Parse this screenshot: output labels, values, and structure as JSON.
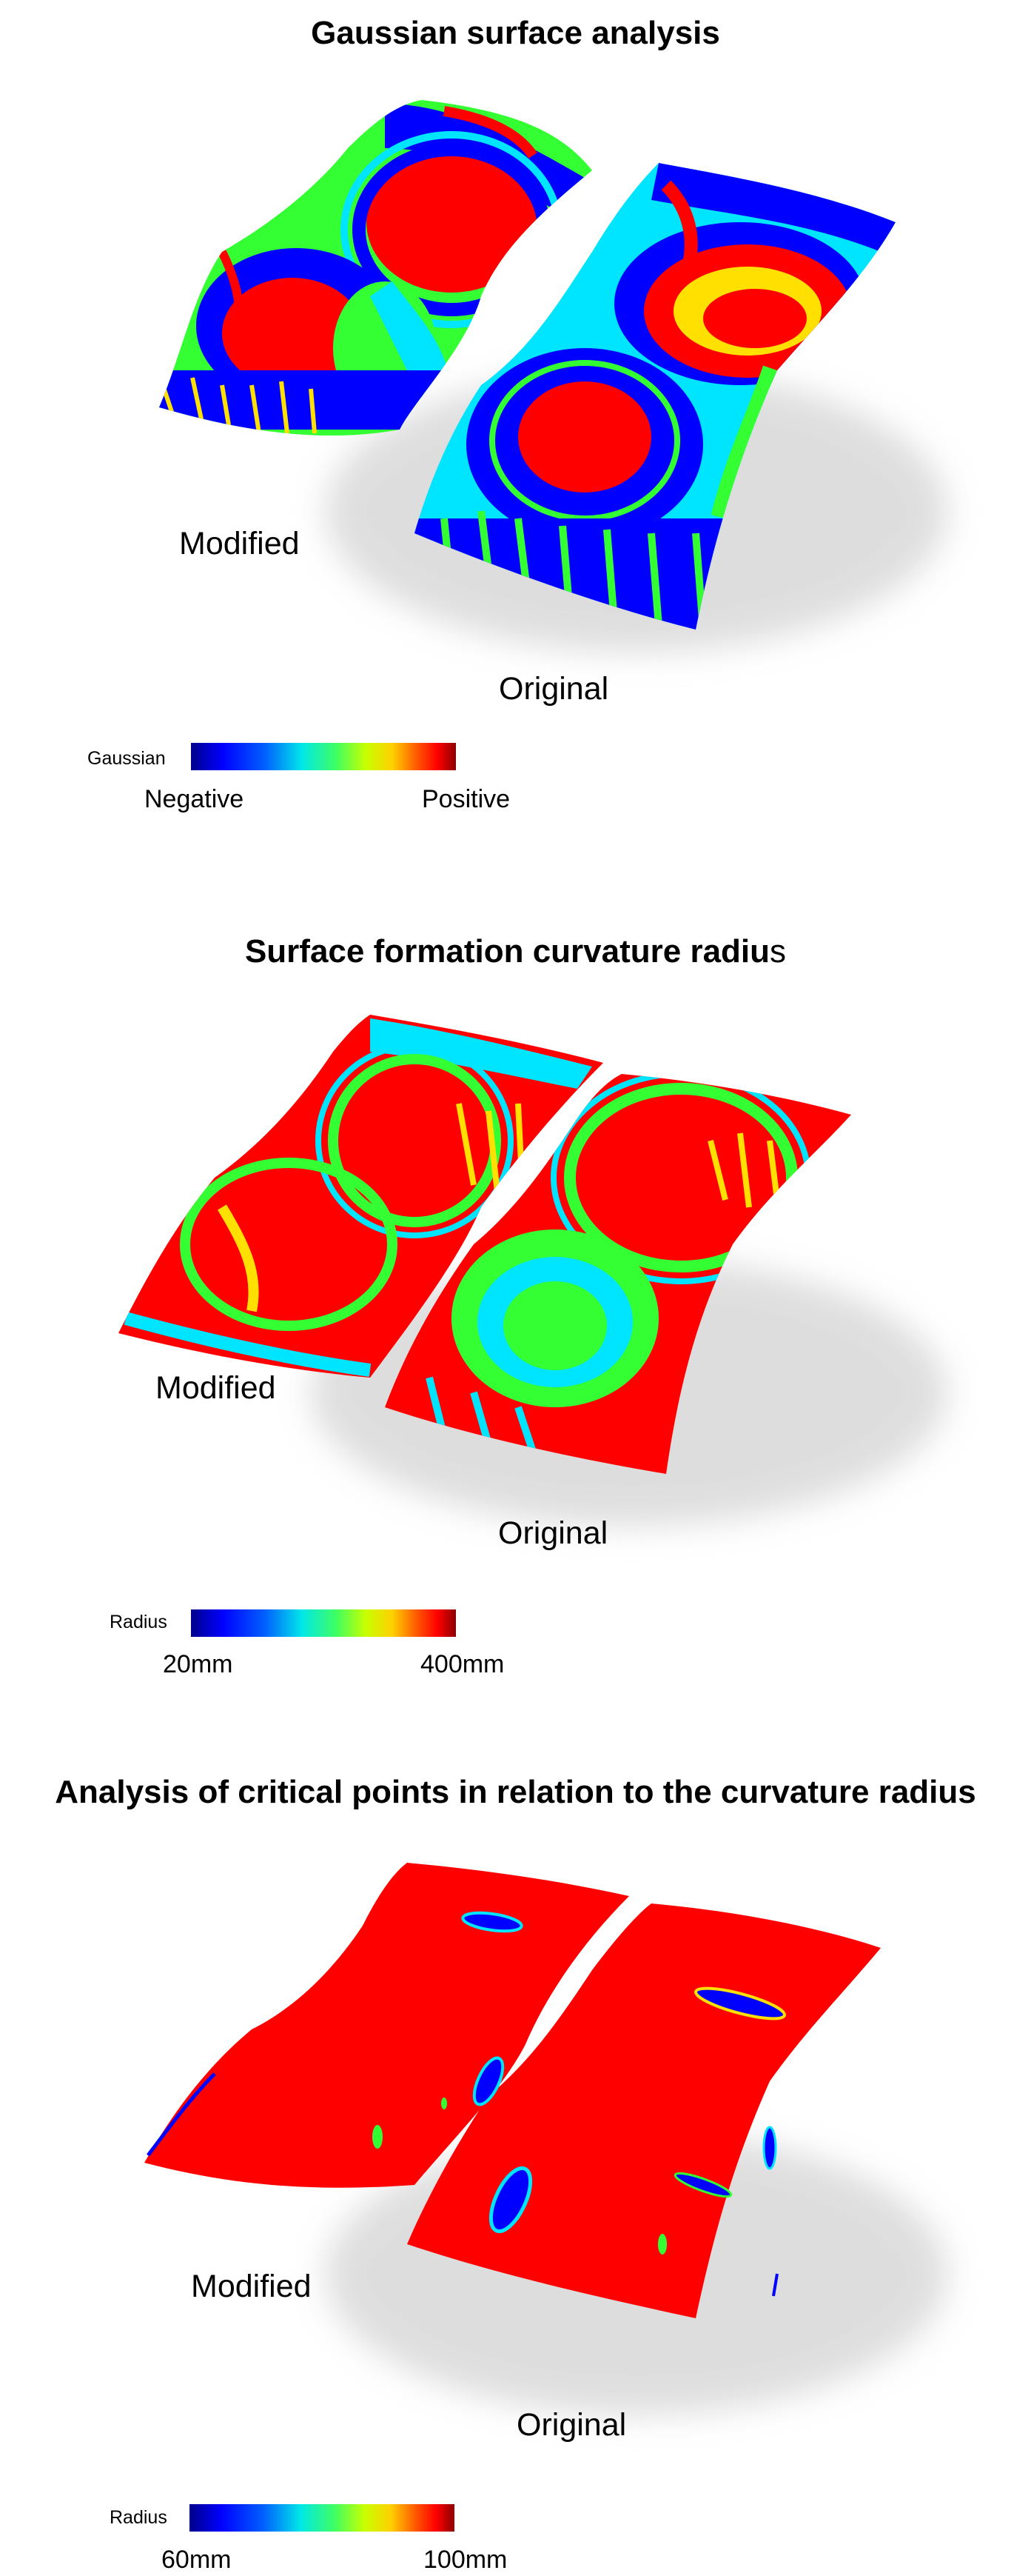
{
  "sections": [
    {
      "title": "Gaussian surface analysis",
      "title_tail": "",
      "label_left": "Modified",
      "label_right": "Original",
      "legend": {
        "label": "Gaussian",
        "min": "Negative",
        "max": "Positive"
      }
    },
    {
      "title": "Surface formation curvature radiu",
      "title_tail": "s",
      "label_left": "Modified",
      "label_right": "Original",
      "legend": {
        "label": "Radius",
        "min": "20mm",
        "max": "400mm"
      }
    },
    {
      "title": "Analysis of critical points in relation to the curvature radius",
      "title_tail": "",
      "label_left": "Modified",
      "label_right": "Original",
      "legend": {
        "label": "Radius",
        "min": "60mm",
        "max": "100mm"
      }
    }
  ],
  "colors": {
    "scale": [
      "#00008c",
      "#0000ff",
      "#00e8e8",
      "#40ff60",
      "#ffd000",
      "#ff0000",
      "#8c0000"
    ],
    "red": "#ff0000",
    "blue": "#0000ff",
    "green": "#33ff33",
    "cyan": "#00e5ff",
    "yellow": "#ffe000"
  }
}
